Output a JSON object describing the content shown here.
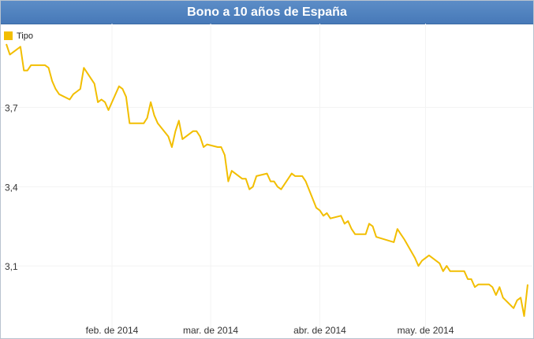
{
  "chart_data": {
    "type": "line",
    "title": "Bono a 10 años de España",
    "xlabel": "",
    "ylabel": "",
    "legend": "top-left",
    "grid": true,
    "colors": {
      "line": "#f2be00",
      "header": "#4f82c0",
      "grid": "#f3f3f3"
    },
    "y_ticks": [
      "3,7",
      "3,4",
      "3,1"
    ],
    "y_tick_values": [
      3.7,
      3.4,
      3.1
    ],
    "ylim": [
      2.88,
      3.94
    ],
    "x_ticks": [
      "feb. de 2014",
      "mar. de 2014",
      "abr. de 2014",
      "may. de 2014"
    ],
    "x_tick_dates": [
      "2014-02-01",
      "2014-03-01",
      "2014-04-01",
      "2014-05-01"
    ],
    "xlim": [
      "2014-01-02",
      "2014-05-30"
    ],
    "series": [
      {
        "name": "Tipo",
        "x": [
          "2014-01-02",
          "2014-01-03",
          "2014-01-06",
          "2014-01-07",
          "2014-01-08",
          "2014-01-09",
          "2014-01-10",
          "2014-01-13",
          "2014-01-14",
          "2014-01-15",
          "2014-01-16",
          "2014-01-17",
          "2014-01-20",
          "2014-01-21",
          "2014-01-22",
          "2014-01-23",
          "2014-01-24",
          "2014-01-27",
          "2014-01-28",
          "2014-01-29",
          "2014-01-30",
          "2014-01-31",
          "2014-02-03",
          "2014-02-04",
          "2014-02-05",
          "2014-02-06",
          "2014-02-07",
          "2014-02-10",
          "2014-02-11",
          "2014-02-12",
          "2014-02-13",
          "2014-02-14",
          "2014-02-17",
          "2014-02-18",
          "2014-02-19",
          "2014-02-20",
          "2014-02-21",
          "2014-02-24",
          "2014-02-25",
          "2014-02-26",
          "2014-02-27",
          "2014-02-28",
          "2014-03-03",
          "2014-03-04",
          "2014-03-05",
          "2014-03-06",
          "2014-03-07",
          "2014-03-10",
          "2014-03-11",
          "2014-03-12",
          "2014-03-13",
          "2014-03-14",
          "2014-03-17",
          "2014-03-18",
          "2014-03-19",
          "2014-03-20",
          "2014-03-21",
          "2014-03-24",
          "2014-03-25",
          "2014-03-26",
          "2014-03-27",
          "2014-03-28",
          "2014-03-31",
          "2014-04-01",
          "2014-04-02",
          "2014-04-03",
          "2014-04-04",
          "2014-04-07",
          "2014-04-08",
          "2014-04-09",
          "2014-04-10",
          "2014-04-11",
          "2014-04-14",
          "2014-04-15",
          "2014-04-16",
          "2014-04-17",
          "2014-04-22",
          "2014-04-23",
          "2014-04-24",
          "2014-04-25",
          "2014-04-28",
          "2014-04-29",
          "2014-04-30",
          "2014-05-02",
          "2014-05-05",
          "2014-05-06",
          "2014-05-07",
          "2014-05-08",
          "2014-05-09",
          "2014-05-12",
          "2014-05-13",
          "2014-05-14",
          "2014-05-15",
          "2014-05-16",
          "2014-05-19",
          "2014-05-20",
          "2014-05-21",
          "2014-05-22",
          "2014-05-23",
          "2014-05-26",
          "2014-05-27",
          "2014-05-28",
          "2014-05-29",
          "2014-05-30"
        ],
        "values": [
          3.94,
          3.9,
          3.93,
          3.84,
          3.84,
          3.86,
          3.86,
          3.86,
          3.85,
          3.8,
          3.77,
          3.75,
          3.73,
          3.75,
          3.76,
          3.77,
          3.85,
          3.79,
          3.72,
          3.73,
          3.72,
          3.69,
          3.78,
          3.77,
          3.74,
          3.64,
          3.64,
          3.64,
          3.66,
          3.72,
          3.67,
          3.64,
          3.59,
          3.55,
          3.61,
          3.65,
          3.58,
          3.61,
          3.61,
          3.59,
          3.55,
          3.56,
          3.55,
          3.55,
          3.52,
          3.42,
          3.46,
          3.43,
          3.43,
          3.39,
          3.4,
          3.44,
          3.45,
          3.42,
          3.42,
          3.4,
          3.39,
          3.45,
          3.44,
          3.44,
          3.44,
          3.42,
          3.32,
          3.31,
          3.29,
          3.3,
          3.28,
          3.29,
          3.26,
          3.27,
          3.24,
          3.22,
          3.22,
          3.26,
          3.25,
          3.21,
          3.19,
          3.24,
          3.22,
          3.2,
          3.13,
          3.1,
          3.12,
          3.14,
          3.11,
          3.08,
          3.1,
          3.08,
          3.08,
          3.08,
          3.05,
          3.05,
          3.02,
          3.03,
          3.03,
          3.02,
          2.99,
          3.02,
          2.98,
          2.94,
          2.97,
          2.98,
          2.91,
          3.03
        ]
      }
    ]
  }
}
